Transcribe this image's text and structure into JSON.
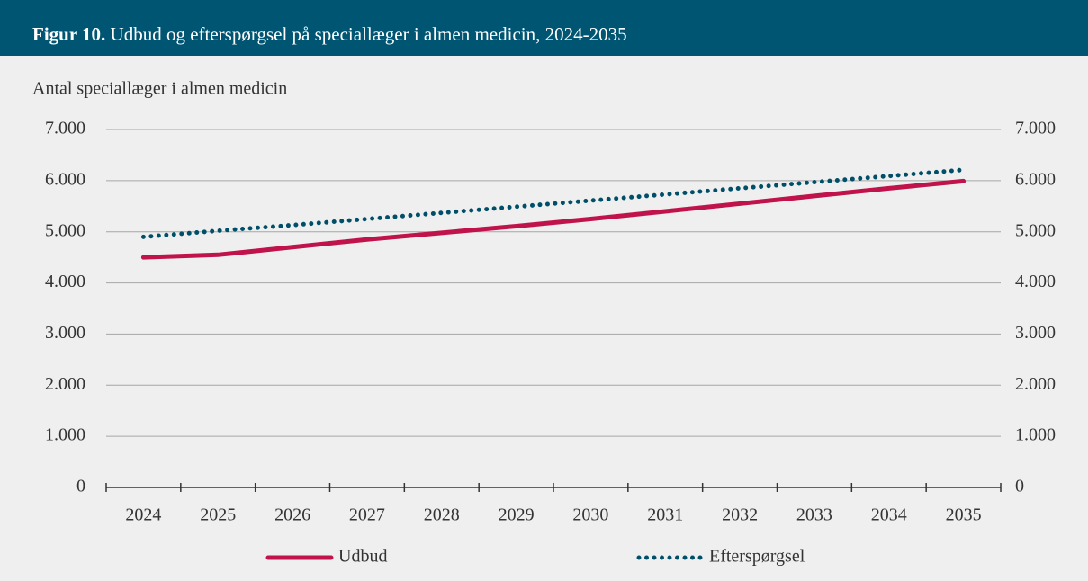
{
  "chart_data": {
    "type": "line",
    "title_label": "Figur 10.",
    "title": "Udbud og efterspørgsel på speciallæger i almen medicin, 2024-2035",
    "y_axis_label": "Antal speciallæger i almen medicin",
    "categories": [
      "2024",
      "2025",
      "2026",
      "2027",
      "2028",
      "2029",
      "2030",
      "2031",
      "2032",
      "2033",
      "2034",
      "2035"
    ],
    "series": [
      {
        "name": "Udbud",
        "color": "#c0134b",
        "style": "solid",
        "values": [
          4500,
          4550,
          4700,
          4850,
          4980,
          5110,
          5250,
          5400,
          5550,
          5700,
          5850,
          5990
        ]
      },
      {
        "name": "Efterspørgsel",
        "color": "#004f68",
        "style": "dotted",
        "values": [
          4900,
          5020,
          5130,
          5250,
          5370,
          5490,
          5610,
          5730,
          5850,
          5970,
          6090,
          6210
        ]
      }
    ],
    "ylim": [
      0,
      7000
    ],
    "yticks": [
      0,
      {
        "value": 1000,
        "label": "1.000"
      },
      {
        "value": 2000,
        "label": "2.000"
      },
      {
        "value": 3000,
        "label": "3.000"
      },
      {
        "value": 4000,
        "label": "4.000"
      },
      {
        "value": 5000,
        "label": "5.000"
      },
      {
        "value": 6000,
        "label": "6.000"
      },
      {
        "value": 7000,
        "label": "7.000"
      }
    ],
    "y2lim": [
      0,
      7000
    ],
    "y2ticks": [
      0,
      {
        "value": 1000,
        "label": "1.000"
      },
      {
        "value": 2000,
        "label": "2.000"
      },
      {
        "value": 3000,
        "label": "3.000"
      },
      {
        "value": 4000,
        "label": "4.000"
      },
      {
        "value": 5000,
        "label": "5.000"
      },
      {
        "value": 6000,
        "label": "6.000"
      },
      {
        "value": 7000,
        "label": "7.000"
      }
    ],
    "grid": true,
    "legend": "bottom"
  }
}
